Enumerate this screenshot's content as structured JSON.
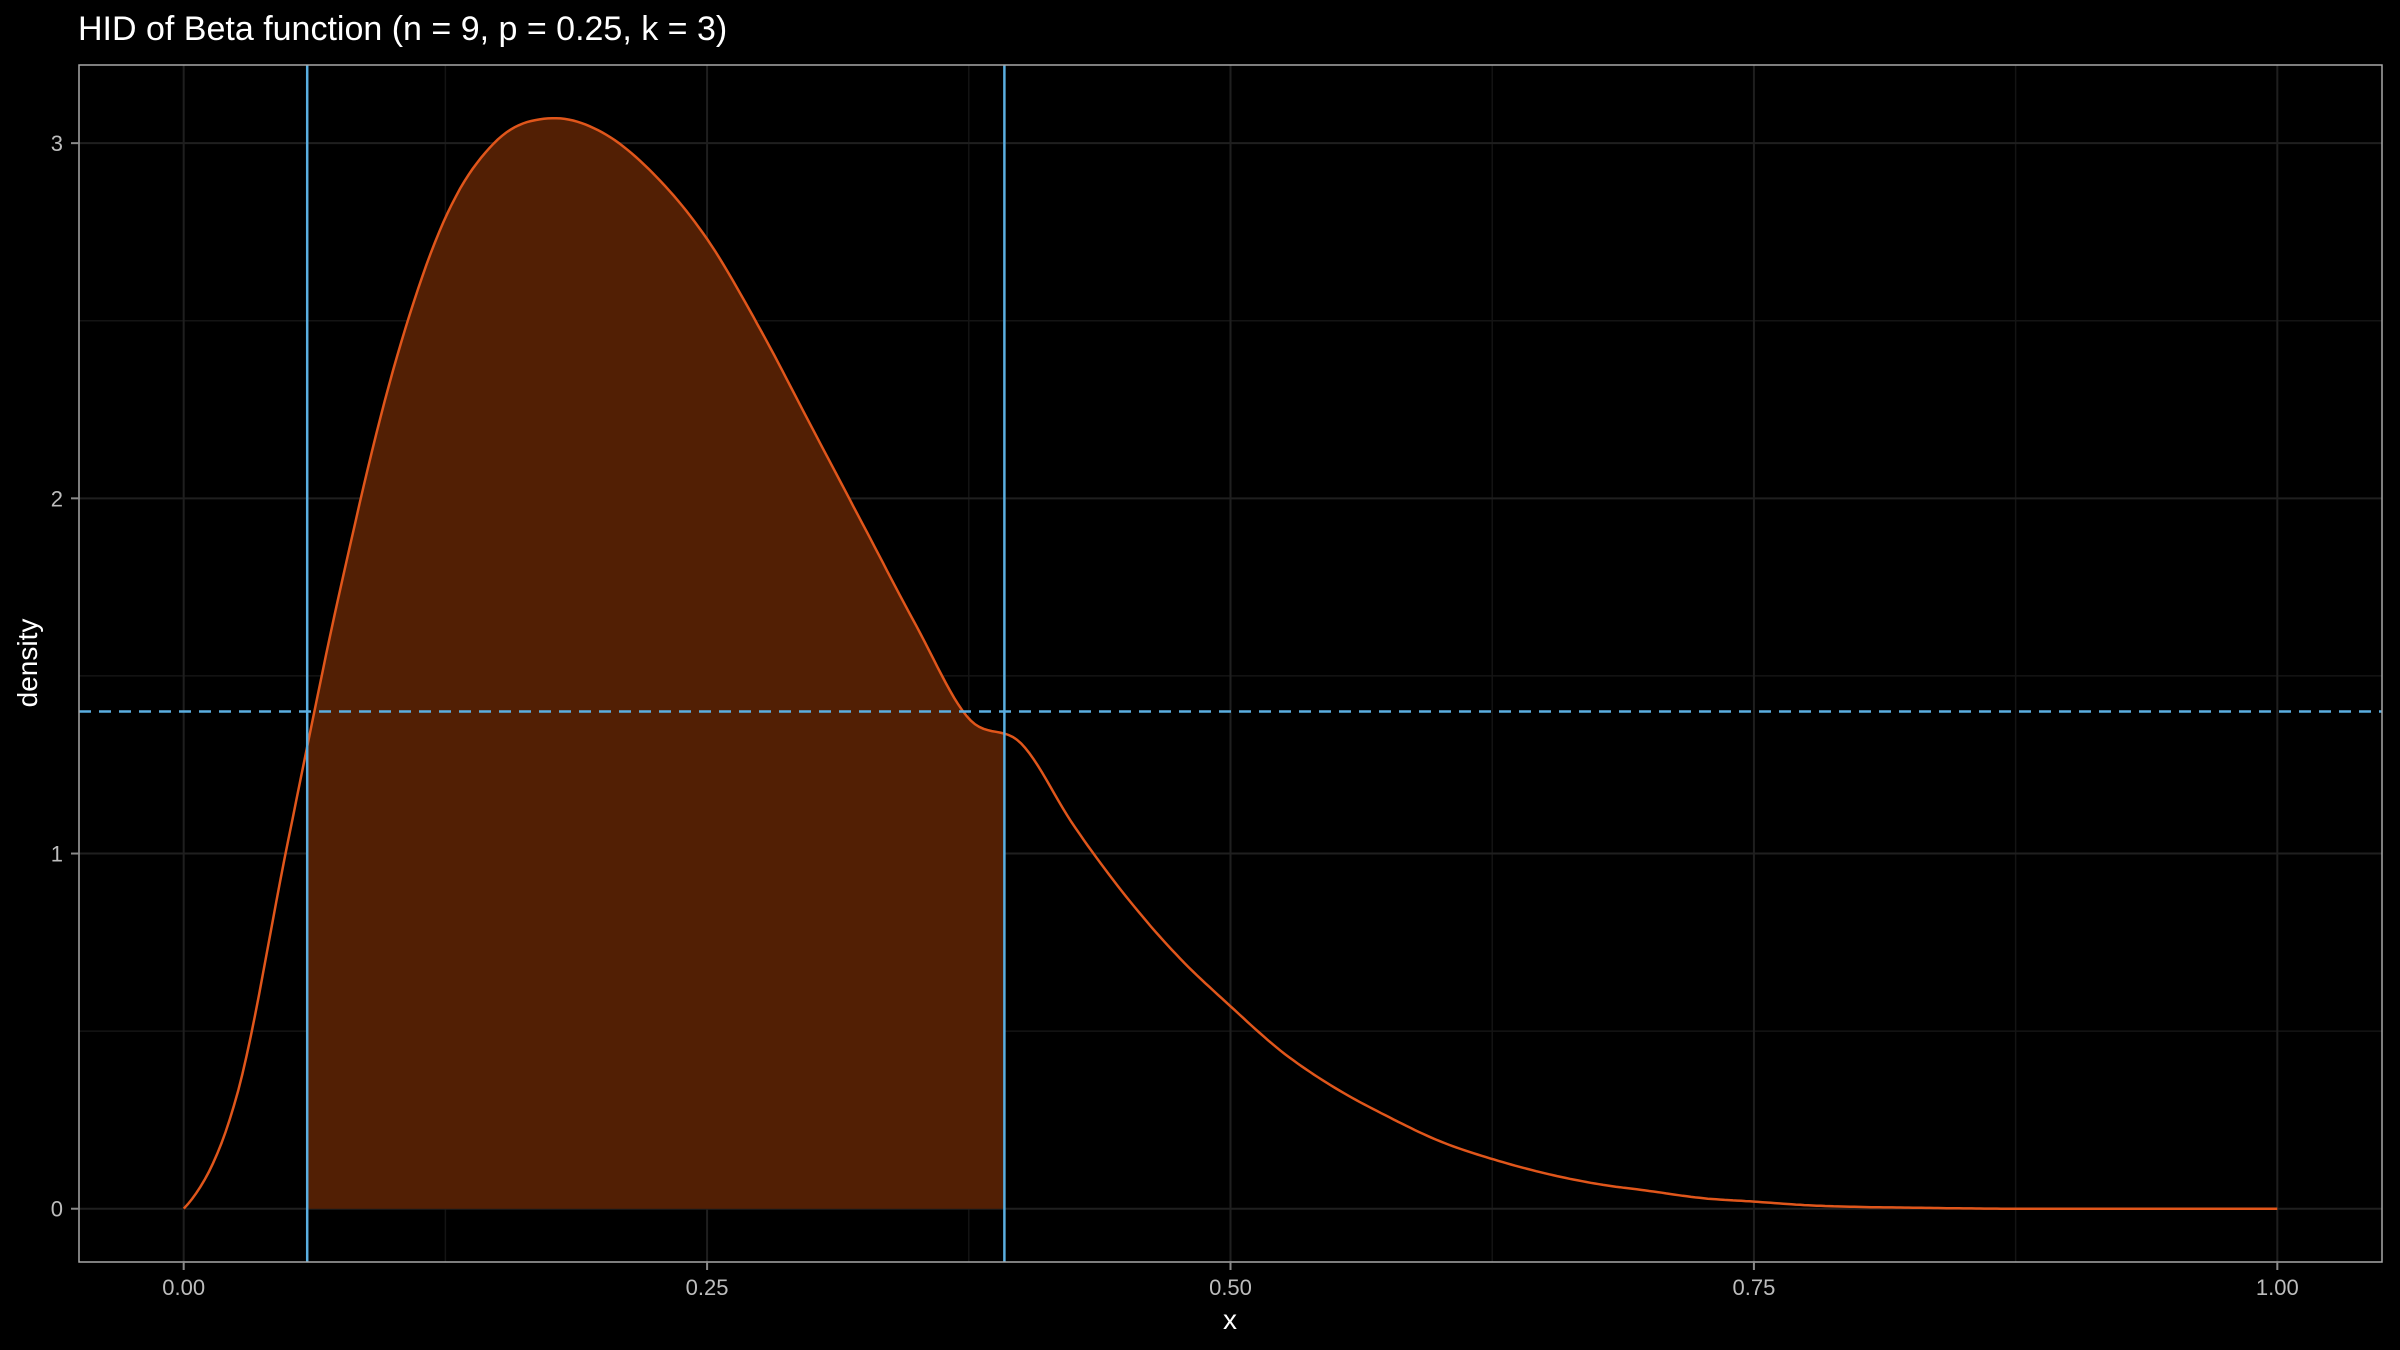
{
  "chart_data": {
    "type": "area",
    "title": "HID of Beta function (n = 9, p = 0.25, k = 3)",
    "xlabel": "x",
    "ylabel": "density",
    "xlim": [
      -0.05,
      1.05
    ],
    "ylim": [
      -0.15,
      3.22
    ],
    "x_ticks": [
      0,
      0.25,
      0.5,
      0.75,
      1
    ],
    "x_tick_labels": [
      "0.00",
      "0.25",
      "0.50",
      "0.75",
      "1.00"
    ],
    "y_ticks": [
      0,
      1,
      2,
      3
    ],
    "y_tick_labels": [
      "0",
      "1",
      "2",
      "3"
    ],
    "grid": true,
    "legend": "none",
    "series": [
      {
        "curve": "density",
        "color": "#e0561b",
        "x": [
          0.0,
          0.025,
          0.05,
          0.075,
          0.1,
          0.125,
          0.15,
          0.175,
          0.2,
          0.225,
          0.25,
          0.275,
          0.3,
          0.325,
          0.35,
          0.375,
          0.4,
          0.425,
          0.45,
          0.475,
          0.5,
          0.525,
          0.55,
          0.575,
          0.6,
          0.625,
          0.65,
          0.675,
          0.7,
          0.725,
          0.75,
          0.775,
          0.8,
          0.825,
          0.85,
          0.875,
          0.9,
          0.925,
          0.95,
          0.975,
          1.0
        ],
        "y": [
          0.0,
          0.31,
          1.04,
          1.75,
          2.36,
          2.79,
          3.01,
          3.07,
          3.03,
          2.91,
          2.73,
          2.48,
          2.2,
          1.92,
          1.64,
          1.38,
          1.31,
          1.08,
          0.88,
          0.71,
          0.57,
          0.44,
          0.34,
          0.26,
          0.19,
          0.14,
          0.1,
          0.07,
          0.05,
          0.03,
          0.02,
          0.01,
          0.005,
          0.003,
          0.001,
          0.0,
          0.0,
          0.0,
          0.0,
          0.0,
          0.0
        ]
      }
    ],
    "hid_interval": [
      0.059,
      0.392
    ],
    "hid_density": 1.4,
    "fill_color": "#521f04",
    "line_color": "#e0561b",
    "interval_line_color": "#5aaee0"
  }
}
